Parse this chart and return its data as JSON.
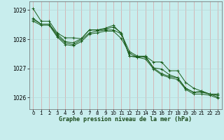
{
  "title": "Graphe pression niveau de la mer (hPa)",
  "background_color": "#c8eded",
  "grid_color_v": "#d9a0a0",
  "grid_color_h": "#b8d8d8",
  "line_color": "#1a5c1a",
  "xlim": [
    -0.5,
    23.5
  ],
  "ylim": [
    1025.6,
    1029.3
  ],
  "yticks": [
    1026,
    1027,
    1028,
    1029
  ],
  "xticks": [
    0,
    1,
    2,
    3,
    4,
    5,
    6,
    7,
    8,
    9,
    10,
    11,
    12,
    13,
    14,
    15,
    16,
    17,
    18,
    19,
    20,
    21,
    22,
    23
  ],
  "series": [
    [
      1029.05,
      1028.62,
      1028.62,
      1028.22,
      1028.05,
      1028.05,
      1028.02,
      1028.32,
      1028.32,
      1028.35,
      1028.42,
      1028.22,
      1027.42,
      1027.42,
      1027.42,
      1027.22,
      1027.22,
      1026.92,
      1026.92,
      1026.52,
      1026.32,
      1026.22,
      1026.12,
      1026.12
    ],
    [
      1028.72,
      1028.52,
      1028.52,
      1028.18,
      1027.92,
      1027.88,
      1028.02,
      1028.32,
      1028.32,
      1028.38,
      1028.48,
      1028.18,
      1027.42,
      1027.38,
      1027.42,
      1027.02,
      1026.98,
      1026.78,
      1026.68,
      1026.32,
      1026.18,
      1026.22,
      1026.12,
      1026.08
    ],
    [
      1028.68,
      1028.52,
      1028.52,
      1028.12,
      1027.88,
      1027.82,
      1027.98,
      1028.22,
      1028.28,
      1028.32,
      1028.32,
      1028.18,
      1027.58,
      1027.42,
      1027.38,
      1027.02,
      1026.82,
      1026.72,
      1026.68,
      1026.32,
      1026.18,
      1026.18,
      1026.12,
      1026.02
    ],
    [
      1028.62,
      1028.48,
      1028.48,
      1028.08,
      1027.82,
      1027.78,
      1027.92,
      1028.18,
      1028.22,
      1028.28,
      1028.28,
      1028.02,
      1027.52,
      1027.38,
      1027.32,
      1026.98,
      1026.78,
      1026.68,
      1026.62,
      1026.28,
      1026.12,
      1026.12,
      1026.08,
      1025.98
    ]
  ]
}
